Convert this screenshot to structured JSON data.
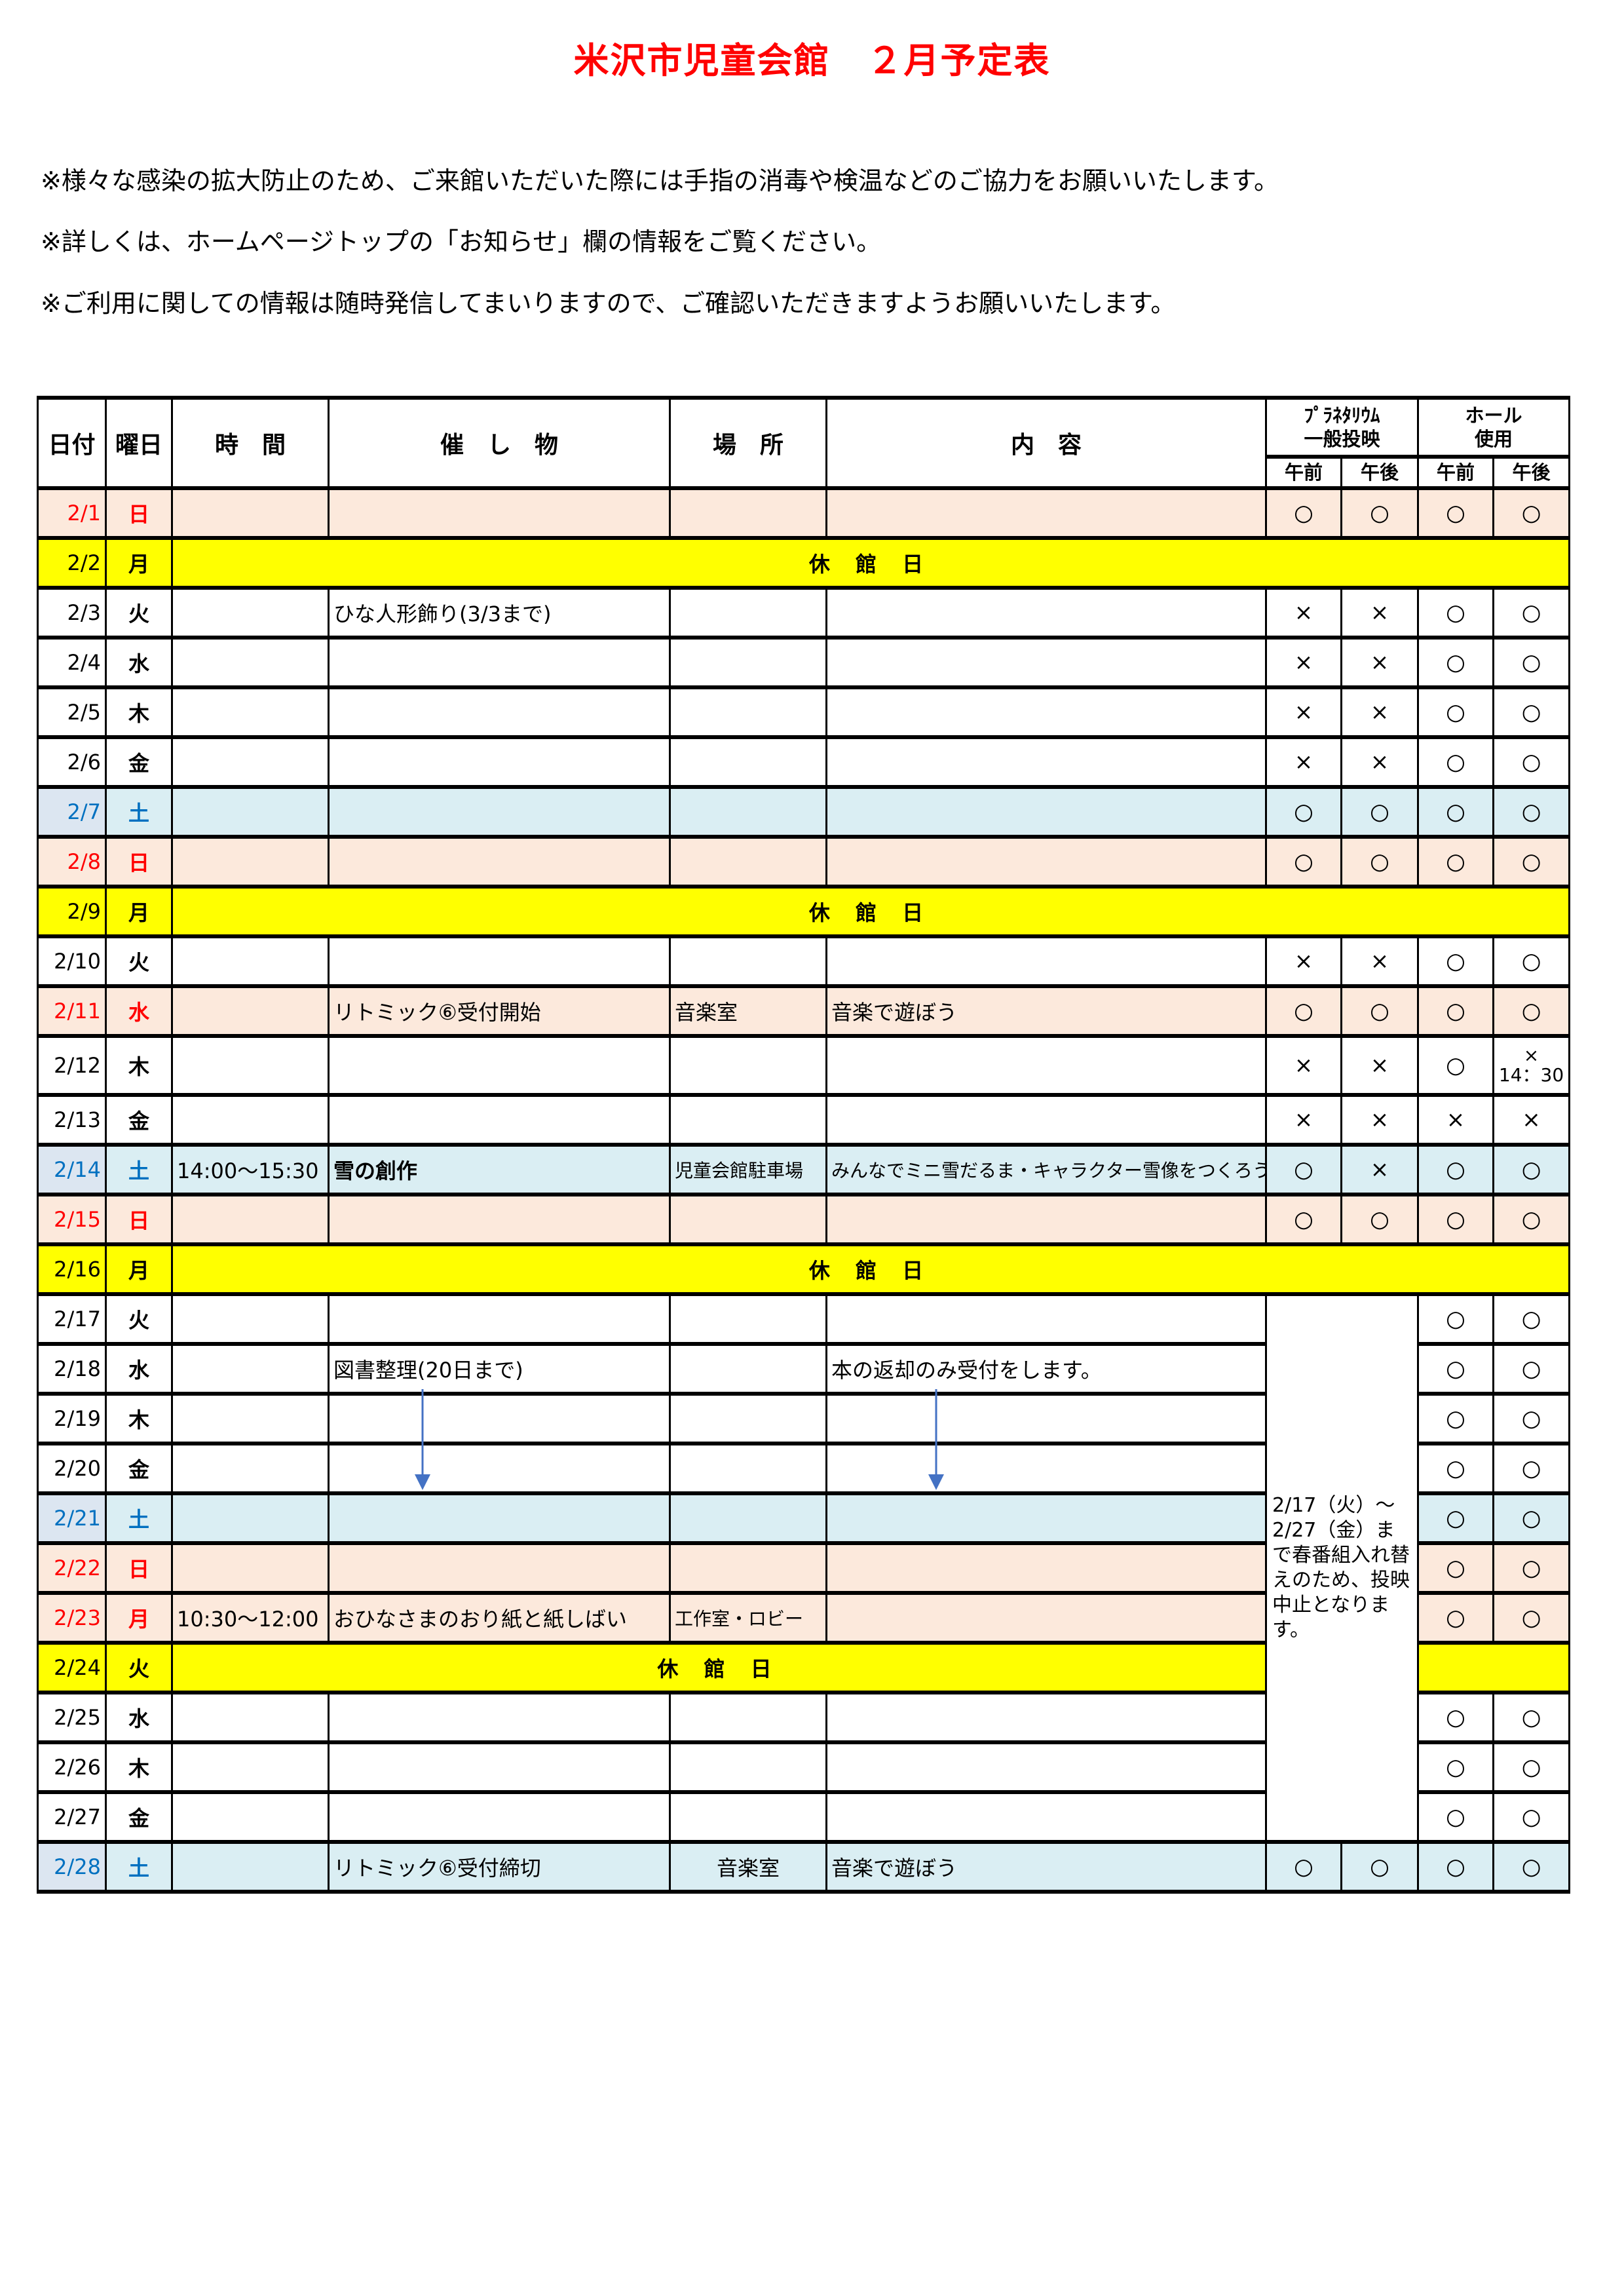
{
  "title": "米沢市児童会館　２月予定表",
  "notes": [
    "※様々な感染の拡大防止のため、ご来館いただいた際には手指の消毒や検温などのご協力をお願いいたします。",
    "※詳しくは、ホームページトップの「お知らせ」欄の情報をご覧ください。",
    "※ご利用に関しての情報は随時発信してまいりますので、ご確認いただきますようお願いいたします。"
  ],
  "table": {
    "headers": {
      "date": "日付",
      "dow": "曜日",
      "time": "時　間",
      "event": "催　し　物",
      "place": "場　所",
      "content": "内　容",
      "planetarium_line1": "ﾌﾟﾗﾈﾀﾘｳﾑ",
      "planetarium_line2": "一般投映",
      "hall_line1": "ホール",
      "hall_line2": "使用",
      "am": "午前",
      "pm": "午後"
    },
    "closed_label": "休 館 日",
    "planetarium_note": "2/17（火）～2/27（金）まで春番組入れ替えのため、投映中止となります。",
    "colors": {
      "sunday": "#fce9dc",
      "saturday": "#daeef3",
      "closed": "#ffff00",
      "red": "#ff0000",
      "blue": "#0070c0",
      "title": "#ff0000",
      "arrow": "#4472c4"
    },
    "rows": [
      {
        "date": "2/1",
        "dow": "日",
        "type": "sun",
        "marks": [
          "○",
          "○",
          "○",
          "○"
        ]
      },
      {
        "date": "2/2",
        "dow": "月",
        "type": "closed"
      },
      {
        "date": "2/3",
        "dow": "火",
        "type": "normal",
        "event": "ひな人形飾り(3/3まで)",
        "marks": [
          "×",
          "×",
          "○",
          "○"
        ]
      },
      {
        "date": "2/4",
        "dow": "水",
        "type": "normal",
        "marks": [
          "×",
          "×",
          "○",
          "○"
        ]
      },
      {
        "date": "2/5",
        "dow": "木",
        "type": "normal",
        "marks": [
          "×",
          "×",
          "○",
          "○"
        ]
      },
      {
        "date": "2/6",
        "dow": "金",
        "type": "normal",
        "marks": [
          "×",
          "×",
          "○",
          "○"
        ]
      },
      {
        "date": "2/7",
        "dow": "土",
        "type": "sat",
        "marks": [
          "○",
          "○",
          "○",
          "○"
        ]
      },
      {
        "date": "2/8",
        "dow": "日",
        "type": "sun",
        "marks": [
          "○",
          "○",
          "○",
          "○"
        ]
      },
      {
        "date": "2/9",
        "dow": "月",
        "type": "closed"
      },
      {
        "date": "2/10",
        "dow": "火",
        "type": "normal",
        "marks": [
          "×",
          "×",
          "○",
          "○"
        ]
      },
      {
        "date": "2/11",
        "dow": "水",
        "type": "sun",
        "event": "リトミック⑥受付開始",
        "place": "音楽室",
        "content": "音楽で遊ぼう",
        "marks": [
          "○",
          "○",
          "○",
          "○"
        ]
      },
      {
        "date": "2/12",
        "dow": "木",
        "type": "normal",
        "tall": true,
        "marks": [
          "×",
          "×",
          "○",
          "×"
        ],
        "hall_pm_note": "14：30"
      },
      {
        "date": "2/13",
        "dow": "金",
        "type": "normal",
        "marks": [
          "×",
          "×",
          "×",
          "×"
        ]
      },
      {
        "date": "2/14",
        "dow": "土",
        "type": "sat",
        "time": "14:00～15:30",
        "event": "雪の創作",
        "event_bold": true,
        "place": "児童会館駐車場",
        "content": "みんなでミニ雪だるま・キャラクター雪像をつくろう！",
        "marks": [
          "○",
          "×",
          "○",
          "○"
        ]
      },
      {
        "date": "2/15",
        "dow": "日",
        "type": "sun",
        "marks": [
          "○",
          "○",
          "○",
          "○"
        ]
      },
      {
        "date": "2/16",
        "dow": "月",
        "type": "closed"
      },
      {
        "date": "2/17",
        "dow": "火",
        "type": "normal",
        "plan_note_start": true,
        "marks": [
          "",
          "",
          "○",
          "○"
        ]
      },
      {
        "date": "2/18",
        "dow": "水",
        "type": "normal",
        "event": "図書整理(20日まで)",
        "content": "本の返却のみ受付をします。",
        "plan_merged": true,
        "marks": [
          "",
          "",
          "○",
          "○"
        ]
      },
      {
        "date": "2/19",
        "dow": "木",
        "type": "normal",
        "plan_merged": true,
        "marks": [
          "",
          "",
          "○",
          "○"
        ]
      },
      {
        "date": "2/20",
        "dow": "金",
        "type": "normal",
        "plan_merged": true,
        "marks": [
          "",
          "",
          "○",
          "○"
        ]
      },
      {
        "date": "2/21",
        "dow": "土",
        "type": "sat",
        "plan_merged": true,
        "marks": [
          "",
          "",
          "○",
          "○"
        ]
      },
      {
        "date": "2/22",
        "dow": "日",
        "type": "sun",
        "plan_merged": true,
        "marks": [
          "",
          "",
          "○",
          "○"
        ]
      },
      {
        "date": "2/23",
        "dow": "月",
        "type": "sun",
        "time": "10:30～12:00",
        "event": "おひなさまのおり紙と紙しばい",
        "place": "工作室・ロビー",
        "plan_merged": true,
        "marks": [
          "",
          "",
          "○",
          "○"
        ]
      },
      {
        "date": "2/24",
        "dow": "火",
        "type": "closed",
        "plan_merged": true
      },
      {
        "date": "2/25",
        "dow": "水",
        "type": "normal",
        "plan_merged": true,
        "marks": [
          "",
          "",
          "○",
          "○"
        ]
      },
      {
        "date": "2/26",
        "dow": "木",
        "type": "normal",
        "plan_merged": true,
        "marks": [
          "",
          "",
          "○",
          "○"
        ]
      },
      {
        "date": "2/27",
        "dow": "金",
        "type": "normal",
        "plan_merged": true,
        "marks": [
          "",
          "",
          "○",
          "○"
        ]
      },
      {
        "date": "2/28",
        "dow": "土",
        "type": "sat",
        "event": "リトミック⑥受付締切",
        "place": "音楽室",
        "place_center": true,
        "content": "音楽で遊ぼう",
        "marks": [
          "○",
          "○",
          "○",
          "○"
        ]
      }
    ]
  }
}
